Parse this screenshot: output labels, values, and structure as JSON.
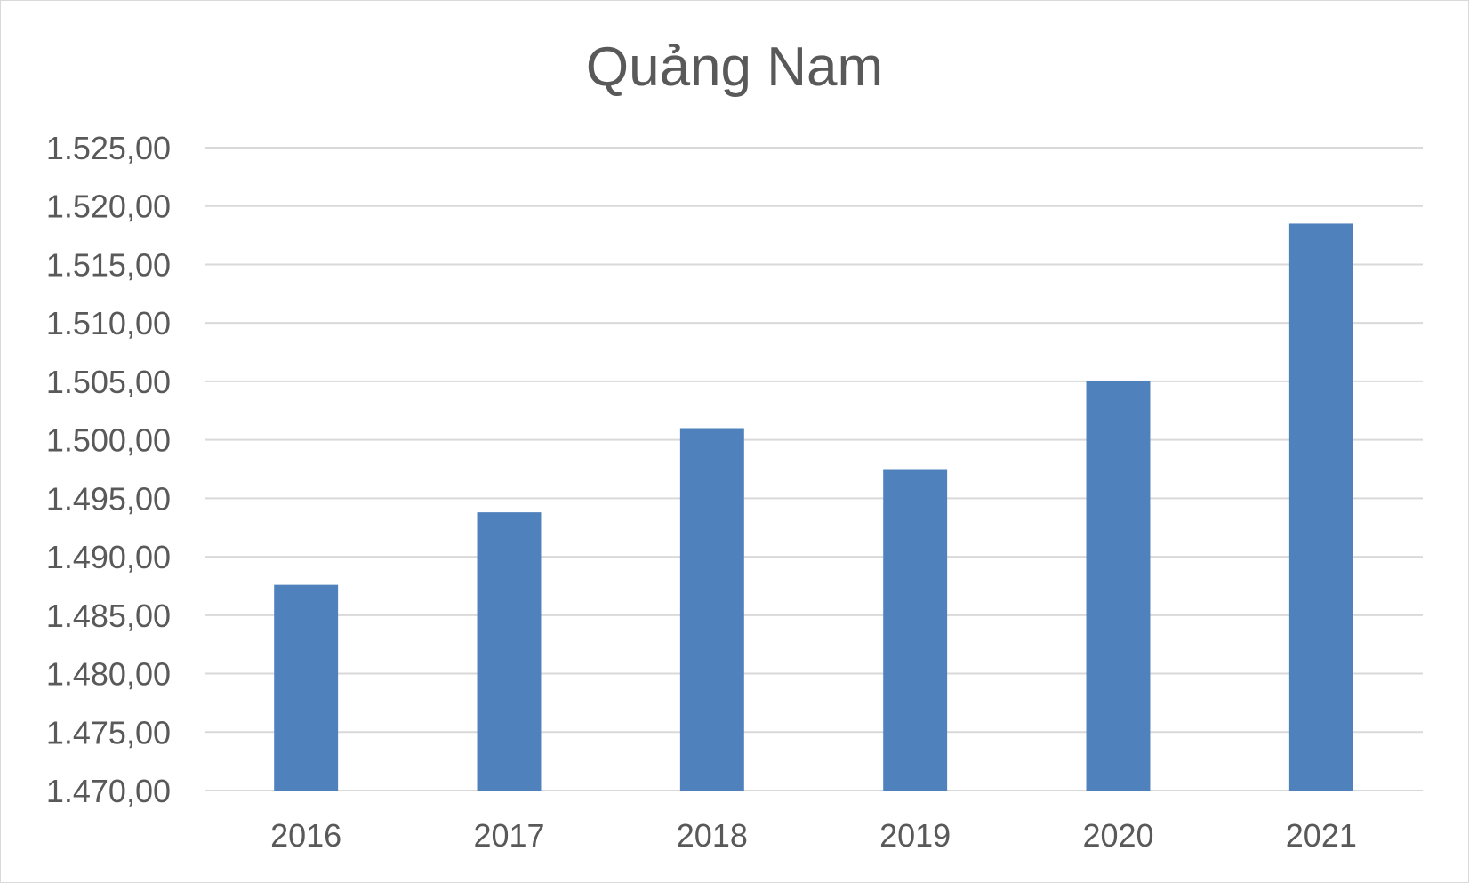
{
  "chart_data": {
    "type": "bar",
    "title": "Quảng Nam",
    "categories": [
      "2016",
      "2017",
      "2018",
      "2019",
      "2020",
      "2021"
    ],
    "values": [
      1487.6,
      1493.8,
      1501.0,
      1497.5,
      1505.0,
      1518.5
    ],
    "ylim": [
      1470,
      1525
    ],
    "yticks": [
      1470,
      1475,
      1480,
      1485,
      1490,
      1495,
      1500,
      1505,
      1510,
      1515,
      1520,
      1525
    ],
    "ytick_labels": [
      "1.470,00",
      "1.475,00",
      "1.480,00",
      "1.485,00",
      "1.490,00",
      "1.495,00",
      "1.500,00",
      "1.505,00",
      "1.510,00",
      "1.515,00",
      "1.520,00",
      "1.525,00"
    ],
    "grid": true,
    "bar_color": "#4f81bd",
    "grid_color": "#d9d9d9",
    "text_color": "#595959"
  }
}
